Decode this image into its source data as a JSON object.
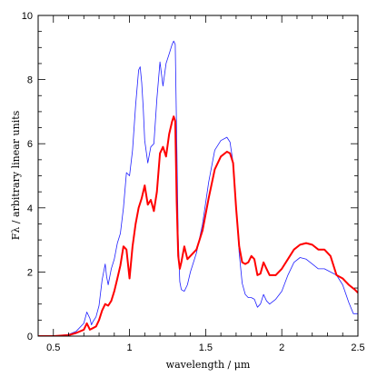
{
  "chart_data": {
    "type": "line",
    "title": "",
    "xlabel": "wavelength / μm",
    "ylabel": "Fλ / arbitrary linear units",
    "xlim": [
      0.4,
      2.5
    ],
    "ylim": [
      0,
      10
    ],
    "x_ticks": [
      0.5,
      1,
      1.5,
      2,
      2.5
    ],
    "x_tick_labels": [
      "0.5",
      "1",
      "1.5",
      "2",
      "2.5"
    ],
    "y_ticks": [
      0,
      2,
      4,
      6,
      8,
      10
    ],
    "y_tick_labels": [
      "0",
      "2",
      "4",
      "6",
      "8",
      "10"
    ],
    "grid": false,
    "legend": "none",
    "series": [
      {
        "color": "#2020ff",
        "width": 0.8,
        "x": [
          0.4,
          0.5,
          0.6,
          0.65,
          0.7,
          0.72,
          0.74,
          0.75,
          0.76,
          0.78,
          0.8,
          0.82,
          0.84,
          0.85,
          0.86,
          0.88,
          0.9,
          0.92,
          0.94,
          0.96,
          0.98,
          1.0,
          1.02,
          1.04,
          1.06,
          1.07,
          1.08,
          1.09,
          1.1,
          1.12,
          1.14,
          1.16,
          1.18,
          1.2,
          1.22,
          1.24,
          1.26,
          1.28,
          1.29,
          1.3,
          1.31,
          1.32,
          1.33,
          1.34,
          1.36,
          1.38,
          1.4,
          1.44,
          1.48,
          1.52,
          1.56,
          1.6,
          1.64,
          1.66,
          1.68,
          1.7,
          1.72,
          1.74,
          1.76,
          1.78,
          1.8,
          1.82,
          1.84,
          1.86,
          1.88,
          1.9,
          1.92,
          1.96,
          2.0,
          2.04,
          2.08,
          2.12,
          2.16,
          2.2,
          2.24,
          2.28,
          2.32,
          2.36,
          2.4,
          2.44,
          2.47,
          2.5
        ],
        "y": [
          0.0,
          0.0,
          0.05,
          0.15,
          0.4,
          0.75,
          0.55,
          0.35,
          0.45,
          0.6,
          0.95,
          1.75,
          2.25,
          1.85,
          1.6,
          2.1,
          2.4,
          2.9,
          3.2,
          4.0,
          5.1,
          5.0,
          5.8,
          7.2,
          8.3,
          8.4,
          7.9,
          7.1,
          6.1,
          5.4,
          5.9,
          6.0,
          7.4,
          8.55,
          7.8,
          8.5,
          8.8,
          9.1,
          9.2,
          9.1,
          6.2,
          3.05,
          1.7,
          1.45,
          1.4,
          1.6,
          2.0,
          2.6,
          3.5,
          4.8,
          5.8,
          6.1,
          6.2,
          6.05,
          5.4,
          4.1,
          2.6,
          1.65,
          1.3,
          1.2,
          1.2,
          1.15,
          0.9,
          1.0,
          1.3,
          1.1,
          1.0,
          1.15,
          1.4,
          1.9,
          2.3,
          2.45,
          2.4,
          2.25,
          2.1,
          2.1,
          2.0,
          1.9,
          1.6,
          1.05,
          0.7,
          0.7
        ]
      },
      {
        "color": "#ff0000",
        "width": 2,
        "x": [
          0.4,
          0.5,
          0.6,
          0.65,
          0.7,
          0.72,
          0.74,
          0.76,
          0.78,
          0.8,
          0.82,
          0.84,
          0.86,
          0.88,
          0.9,
          0.92,
          0.94,
          0.96,
          0.98,
          1.0,
          1.02,
          1.04,
          1.06,
          1.08,
          1.1,
          1.12,
          1.14,
          1.16,
          1.18,
          1.2,
          1.22,
          1.24,
          1.26,
          1.28,
          1.29,
          1.3,
          1.31,
          1.32,
          1.33,
          1.34,
          1.36,
          1.38,
          1.4,
          1.44,
          1.48,
          1.52,
          1.56,
          1.6,
          1.64,
          1.66,
          1.68,
          1.7,
          1.72,
          1.74,
          1.76,
          1.78,
          1.8,
          1.82,
          1.84,
          1.86,
          1.88,
          1.9,
          1.92,
          1.96,
          2.0,
          2.04,
          2.08,
          2.12,
          2.16,
          2.2,
          2.24,
          2.28,
          2.32,
          2.36,
          2.4,
          2.44,
          2.48,
          2.5
        ],
        "y": [
          0.0,
          0.0,
          0.03,
          0.1,
          0.2,
          0.4,
          0.2,
          0.25,
          0.3,
          0.5,
          0.8,
          1.0,
          0.95,
          1.1,
          1.4,
          1.8,
          2.2,
          2.8,
          2.7,
          1.8,
          2.8,
          3.5,
          4.0,
          4.3,
          4.7,
          4.1,
          4.25,
          3.9,
          4.5,
          5.7,
          5.9,
          5.6,
          6.3,
          6.7,
          6.85,
          6.7,
          4.2,
          2.5,
          2.1,
          2.3,
          2.8,
          2.4,
          2.5,
          2.7,
          3.3,
          4.3,
          5.2,
          5.6,
          5.75,
          5.7,
          5.4,
          4.0,
          2.8,
          2.3,
          2.25,
          2.3,
          2.5,
          2.4,
          1.9,
          1.95,
          2.3,
          2.1,
          1.9,
          1.9,
          2.1,
          2.4,
          2.7,
          2.85,
          2.9,
          2.85,
          2.7,
          2.7,
          2.5,
          1.9,
          1.8,
          1.6,
          1.45,
          1.35
        ]
      }
    ]
  }
}
